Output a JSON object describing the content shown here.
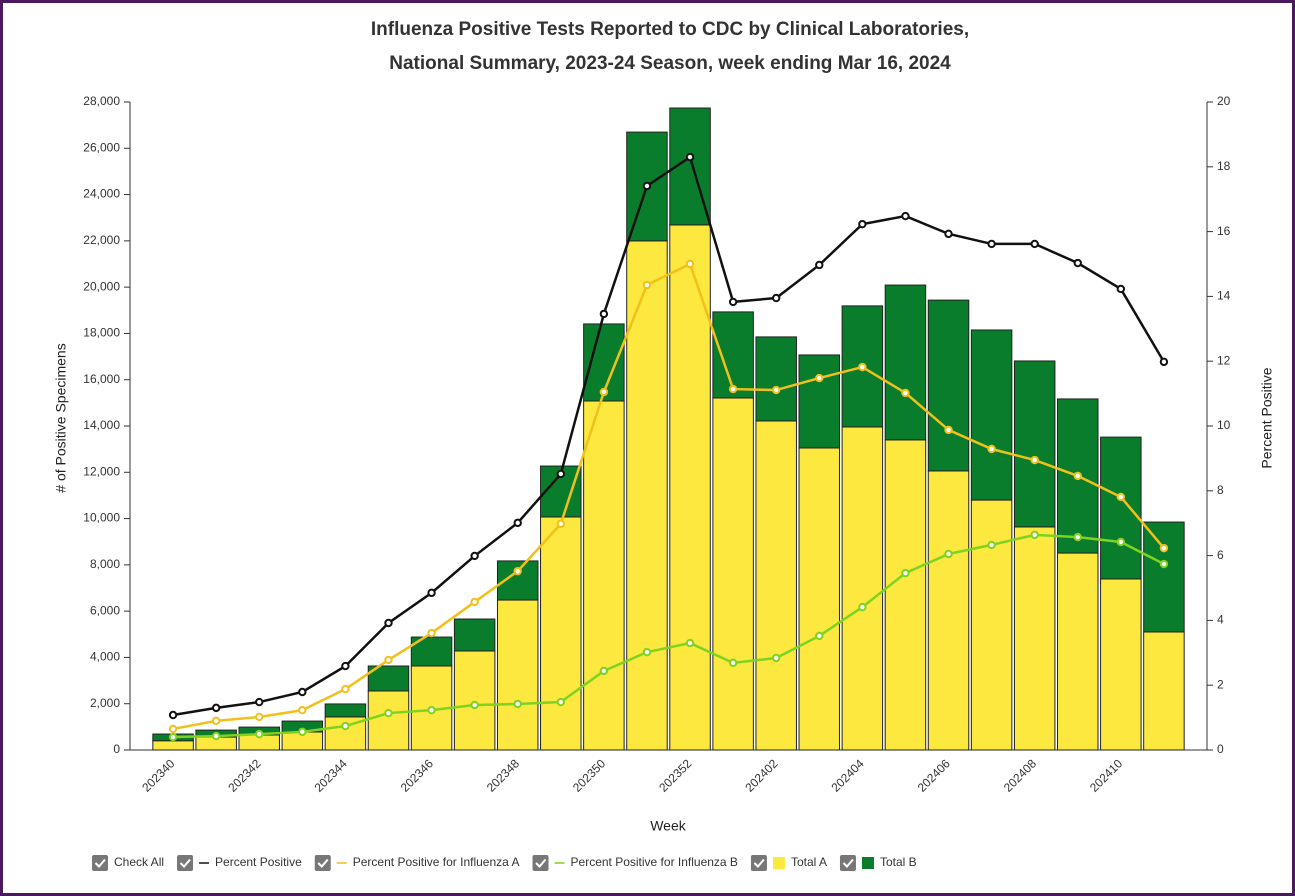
{
  "chart_data": {
    "type": "bar_line",
    "title": [
      "Influenza Positive Tests Reported to CDC by Clinical Laboratories,",
      "National Summary, 2023-24 Season, week ending Mar 16, 2024"
    ],
    "x_label": "Week",
    "y_label": "# of Positive Specimens",
    "y2_label": "Percent Positive",
    "check_all_label": "Check All",
    "categories": [
      "202340",
      null,
      "202342",
      null,
      "202344",
      null,
      "202346",
      null,
      "202348",
      null,
      "202350",
      null,
      "202352",
      null,
      "202402",
      null,
      "202404",
      null,
      "202406",
      null,
      "202408",
      null,
      "202410",
      null
    ],
    "ylim": [
      0,
      28000
    ],
    "yticks": [
      0,
      {
        "value": 2000,
        "label": "2,000"
      },
      {
        "value": 4000,
        "label": "4,000"
      },
      {
        "value": 6000,
        "label": "6,000"
      },
      {
        "value": 8000,
        "label": "8,000"
      },
      {
        "value": 10000,
        "label": "10,000"
      },
      {
        "value": 12000,
        "label": "12,000"
      },
      {
        "value": 14000,
        "label": "14,000"
      },
      {
        "value": 16000,
        "label": "16,000"
      },
      {
        "value": 18000,
        "label": "18,000"
      },
      {
        "value": 20000,
        "label": "20,000"
      },
      {
        "value": 22000,
        "label": "22,000"
      },
      {
        "value": 24000,
        "label": "24,000"
      },
      {
        "value": 26000,
        "label": "26,000"
      },
      {
        "value": 28000,
        "label": "28,000"
      }
    ],
    "y2lim": [
      0,
      20
    ],
    "y2ticks": [
      0,
      2,
      4,
      6,
      8,
      10,
      12,
      14,
      16,
      18,
      20
    ],
    "series": [
      {
        "name": "Percent Positive",
        "type": "line",
        "axis": "y2",
        "color": "#111111",
        "values": [
          1.08,
          1.3,
          1.48,
          1.79,
          2.59,
          3.92,
          4.85,
          5.99,
          7.01,
          8.52,
          13.46,
          17.41,
          18.3,
          13.83,
          13.95,
          14.97,
          16.23,
          16.48,
          15.93,
          15.62,
          15.62,
          15.03,
          14.23,
          11.98
        ]
      },
      {
        "name": "Percent Positive for Influenza A",
        "type": "line",
        "axis": "y2",
        "color": "#f2c01a",
        "values": [
          0.65,
          0.9,
          1.02,
          1.23,
          1.88,
          2.78,
          3.61,
          4.57,
          5.52,
          6.98,
          11.05,
          14.35,
          15.0,
          11.14,
          11.11,
          11.48,
          11.82,
          11.02,
          9.88,
          9.29,
          8.95,
          8.46,
          7.81,
          6.23
        ]
      },
      {
        "name": "Percent Positive for Influenza B",
        "type": "line",
        "axis": "y2",
        "color": "#7ed321",
        "values": [
          0.4,
          0.43,
          0.49,
          0.56,
          0.74,
          1.14,
          1.23,
          1.39,
          1.42,
          1.48,
          2.44,
          3.02,
          3.3,
          2.69,
          2.84,
          3.52,
          4.41,
          5.46,
          6.05,
          6.33,
          6.64,
          6.57,
          6.42,
          5.74
        ]
      },
      {
        "name": "Total A",
        "type": "bar",
        "color": "#fce83f",
        "values": [
          400,
          560,
          650,
          780,
          1430,
          2550,
          3630,
          4280,
          6480,
          10070,
          15080,
          22000,
          22690,
          15210,
          14220,
          13050,
          13960,
          13400,
          12060,
          10800,
          9640,
          8510,
          7390,
          5100
        ]
      },
      {
        "name": "Total B",
        "type": "bar",
        "color": "#0a7d2c",
        "values": [
          290,
          300,
          340,
          470,
          560,
          1080,
          1250,
          1380,
          1690,
          2200,
          3330,
          4700,
          5050,
          3720,
          3630,
          4020,
          5230,
          6690,
          7380,
          7350,
          7170,
          6660,
          6130,
          4750
        ]
      }
    ]
  }
}
